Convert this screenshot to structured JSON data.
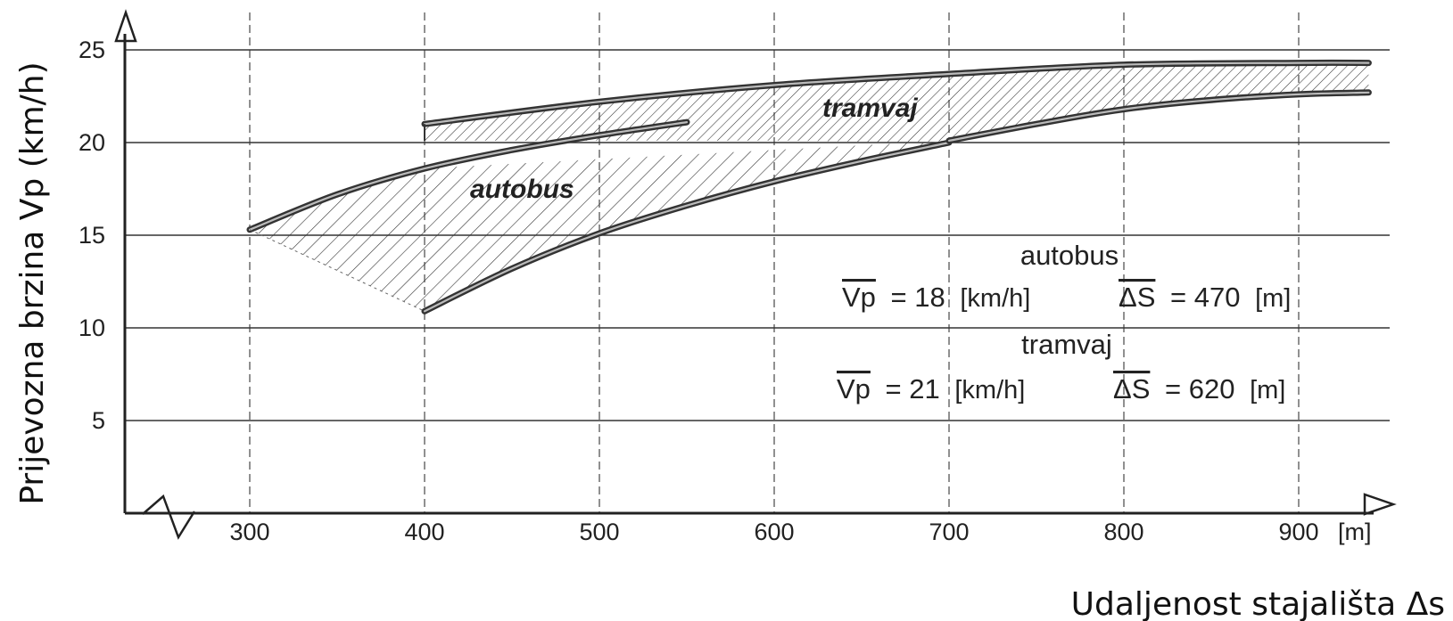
{
  "chart_data": {
    "type": "area",
    "xlabel": "Udaljenost stajališta Δs",
    "ylabel": "Prijevozna brzina Vp (km/h)",
    "x_unit": "[m]",
    "xlim": [
      230,
      940
    ],
    "ylim": [
      0,
      26
    ],
    "grid": true,
    "x_ticks": [
      "300",
      "400",
      "500",
      "600",
      "700",
      "800",
      "900"
    ],
    "y_ticks": [
      "5",
      "10",
      "15",
      "20",
      "25"
    ],
    "series": [
      {
        "name": "autobus",
        "upper": [
          [
            300,
            15.3
          ],
          [
            350,
            17.2
          ],
          [
            400,
            18.6
          ],
          [
            450,
            19.6
          ],
          [
            500,
            20.4
          ],
          [
            550,
            21.1
          ]
        ],
        "lower": [
          [
            400,
            10.9
          ],
          [
            450,
            13.2
          ],
          [
            500,
            15.1
          ],
          [
            550,
            16.6
          ],
          [
            600,
            17.9
          ],
          [
            650,
            19.0
          ],
          [
            700,
            20.0
          ]
        ]
      },
      {
        "name": "tramvaj",
        "upper": [
          [
            400,
            21.0
          ],
          [
            500,
            22.2
          ],
          [
            600,
            23.1
          ],
          [
            700,
            23.7
          ],
          [
            800,
            24.2
          ],
          [
            900,
            24.3
          ],
          [
            940,
            24.3
          ]
        ],
        "lower": [
          [
            400,
            20.1
          ],
          [
            500,
            20.1
          ],
          [
            600,
            20.1
          ],
          [
            700,
            20.1
          ],
          [
            750,
            21.0
          ],
          [
            800,
            21.8
          ],
          [
            850,
            22.3
          ],
          [
            900,
            22.6
          ],
          [
            940,
            22.7
          ]
        ]
      }
    ],
    "annotations": [
      {
        "title": "autobus",
        "speed_symbol": "Vp",
        "speed_value": "= 18",
        "speed_unit": "[km/h]",
        "dist_symbol": "ΔS",
        "dist_value": "= 470",
        "dist_unit": "[m]"
      },
      {
        "title": "tramvaj",
        "speed_symbol": "Vp",
        "speed_value": "= 21",
        "speed_unit": "[km/h]",
        "dist_symbol": "ΔS",
        "dist_value": "= 620",
        "dist_unit": "[m]"
      }
    ]
  }
}
